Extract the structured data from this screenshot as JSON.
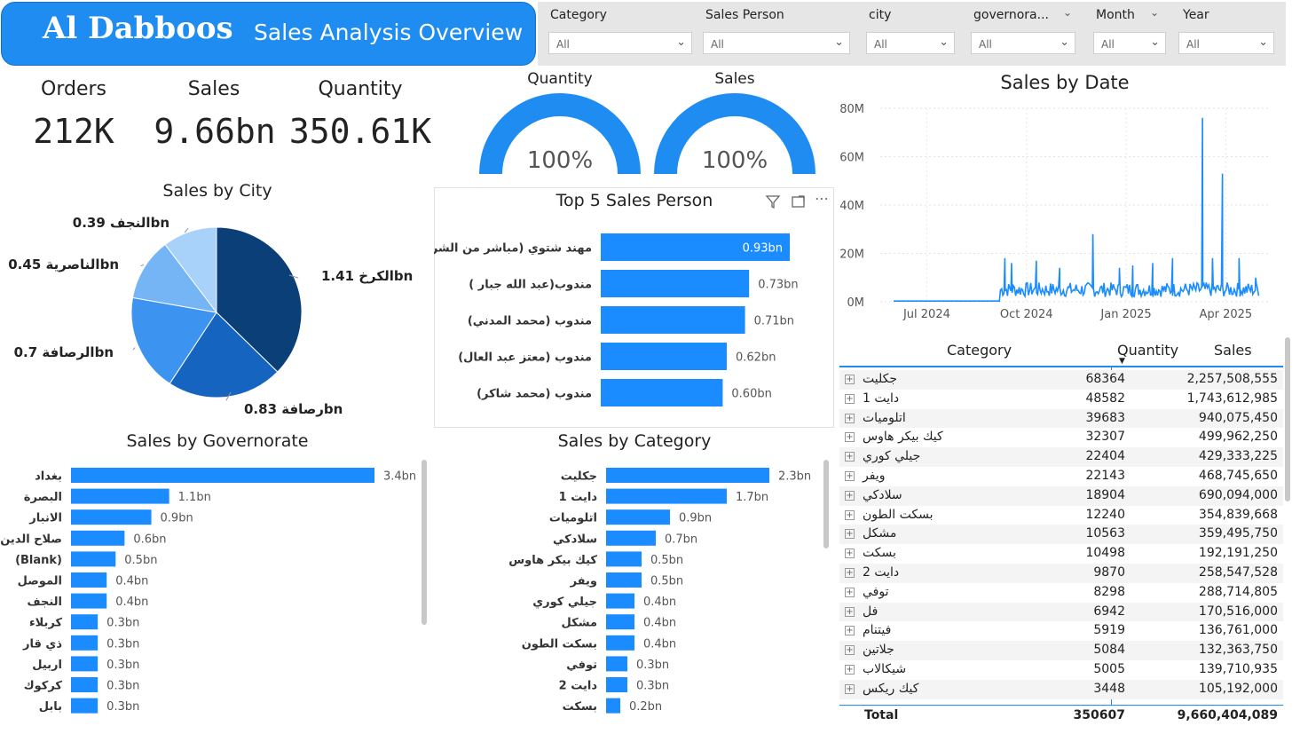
{
  "header": {
    "brand": "Al Dabboos",
    "subtitle": "Sales Analysis Overview"
  },
  "filters": [
    {
      "label": "Category",
      "value": "All"
    },
    {
      "label": "Sales Person",
      "value": "All"
    },
    {
      "label": "city",
      "value": "All"
    },
    {
      "label": "governora...",
      "value": "All"
    },
    {
      "label": "Month",
      "value": "All"
    },
    {
      "label": "Year",
      "value": "All"
    }
  ],
  "kpis": {
    "orders": {
      "label": "Orders",
      "value": "212K"
    },
    "sales": {
      "label": "Sales",
      "value": "9.66bn"
    },
    "quantity": {
      "label": "Quantity",
      "value": "350.61K"
    }
  },
  "gauges": [
    {
      "title": "Quantity",
      "value": "100%",
      "fraction": 1.0
    },
    {
      "title": "Sales",
      "value": "100%",
      "fraction": 1.0
    }
  ],
  "colors": {
    "accent": "#1e8cf0",
    "bar": "#1a8cff",
    "pie": [
      "#0b3f78",
      "#1565c0",
      "#3d93f0",
      "#75b4f5",
      "#a9d2fb"
    ]
  },
  "icons": [
    "filter-icon",
    "focus-mode-icon",
    "more-options-icon"
  ],
  "chart_data": [
    {
      "id": "city",
      "type": "pie",
      "title": "Sales by City",
      "slices": [
        {
          "label": "الكرخ",
          "value": 1.41,
          "text": "1.41bn"
        },
        {
          "label": "رصافة",
          "value": 0.83,
          "text": "0.83bn"
        },
        {
          "label": "الرصافة",
          "value": 0.7,
          "text": "0.7bn"
        },
        {
          "label": "الناصرية",
          "value": 0.45,
          "text": "0.45bn"
        },
        {
          "label": "النجف",
          "value": 0.39,
          "text": "0.39bn"
        }
      ]
    },
    {
      "id": "salesperson",
      "type": "bar",
      "title": "Top 5 Sales Person",
      "categories": [
        "مهند شتوي (مباشر من الشركه)",
        "مندوب(عبد الله جبار )",
        "مندوب (محمد المدني)",
        "مندوب (معتز عبد العال)",
        "مندوب (محمد شاكر)"
      ],
      "values": [
        0.93,
        0.73,
        0.71,
        0.62,
        0.6
      ],
      "labels": [
        "0.93bn",
        "0.73bn",
        "0.71bn",
        "0.62bn",
        "0.60bn"
      ]
    },
    {
      "id": "governorate",
      "type": "bar",
      "title": "Sales by Governorate",
      "categories": [
        "بغداد",
        "البصرة",
        "الانبار",
        "صلاح الدين",
        "(Blank)",
        "الموصل",
        "النجف",
        "كربلاء",
        "ذي قار",
        "اربيل",
        "كركوك",
        "بابل"
      ],
      "values": [
        3.4,
        1.1,
        0.9,
        0.6,
        0.5,
        0.4,
        0.4,
        0.3,
        0.3,
        0.3,
        0.3,
        0.3
      ],
      "labels": [
        "3.4bn",
        "1.1bn",
        "0.9bn",
        "0.6bn",
        "0.5bn",
        "0.4bn",
        "0.4bn",
        "0.3bn",
        "0.3bn",
        "0.3bn",
        "0.3bn",
        "0.3bn"
      ]
    },
    {
      "id": "category",
      "type": "bar",
      "title": "Sales by Category",
      "categories": [
        "جكليت",
        "دايت 1",
        "اتلوميات",
        "سلادكي",
        "كيك بيكر هاوس",
        "ويفر",
        "جيلي كوري",
        "مشكل",
        "بسكت الطون",
        "توفي",
        "دايت 2",
        "بسكت"
      ],
      "values": [
        2.3,
        1.7,
        0.9,
        0.7,
        0.5,
        0.5,
        0.4,
        0.4,
        0.4,
        0.3,
        0.3,
        0.2
      ],
      "labels": [
        "2.3bn",
        "1.7bn",
        "0.9bn",
        "0.7bn",
        "0.5bn",
        "0.5bn",
        "0.4bn",
        "0.4bn",
        "0.4bn",
        "0.3bn",
        "0.3bn",
        "0.2bn"
      ]
    },
    {
      "id": "date",
      "type": "line",
      "title": "Sales by Date",
      "ylim": [
        0,
        80
      ],
      "yticks": [
        "0M",
        "20M",
        "40M",
        "60M",
        "80M"
      ],
      "xticks": [
        "Jul 2024",
        "Oct 2024",
        "Jan 2025",
        "Apr 2025"
      ],
      "x_months": [
        0,
        3,
        6,
        9
      ],
      "spikes": [
        {
          "m": 2.35,
          "v": 18
        },
        {
          "m": 2.55,
          "v": 16
        },
        {
          "m": 3.3,
          "v": 17
        },
        {
          "m": 4.0,
          "v": 14
        },
        {
          "m": 5.0,
          "v": 28
        },
        {
          "m": 5.8,
          "v": 14
        },
        {
          "m": 6.2,
          "v": 15
        },
        {
          "m": 6.8,
          "v": 16
        },
        {
          "m": 7.4,
          "v": 18
        },
        {
          "m": 8.3,
          "v": 76
        },
        {
          "m": 8.6,
          "v": 18
        },
        {
          "m": 8.9,
          "v": 53
        },
        {
          "m": 9.4,
          "v": 18
        },
        {
          "m": 9.9,
          "v": 10
        }
      ],
      "baseline": 2
    },
    {
      "id": "category_table",
      "type": "table",
      "columns": [
        "Category",
        "Quantity",
        "Sales"
      ],
      "rows": [
        [
          "جكليت",
          "68364",
          "2,257,508,555"
        ],
        [
          "دايت 1",
          "48582",
          "1,743,612,985"
        ],
        [
          "اتلوميات",
          "39683",
          "940,075,450"
        ],
        [
          "كيك بيكر هاوس",
          "32307",
          "499,962,250"
        ],
        [
          "جيلي كوري",
          "22404",
          "429,333,225"
        ],
        [
          "ويفر",
          "22143",
          "468,745,650"
        ],
        [
          "سلادكي",
          "18904",
          "690,094,000"
        ],
        [
          "بسكت الطون",
          "12240",
          "354,839,668"
        ],
        [
          "مشكل",
          "10563",
          "359,495,750"
        ],
        [
          "بسكت",
          "10498",
          "192,191,250"
        ],
        [
          "دايت 2",
          "9870",
          "258,547,528"
        ],
        [
          "توفي",
          "8298",
          "288,714,805"
        ],
        [
          "فل",
          "6942",
          "170,516,000"
        ],
        [
          "فيتنام",
          "5919",
          "136,761,000"
        ],
        [
          "جلاتين",
          "5084",
          "132,363,750"
        ],
        [
          "شيكالاب",
          "5005",
          "139,710,935"
        ],
        [
          "كيك ريكس",
          "3448",
          "105,192,000"
        ]
      ],
      "total": [
        "Total",
        "350607",
        "9,660,404,089"
      ]
    }
  ]
}
